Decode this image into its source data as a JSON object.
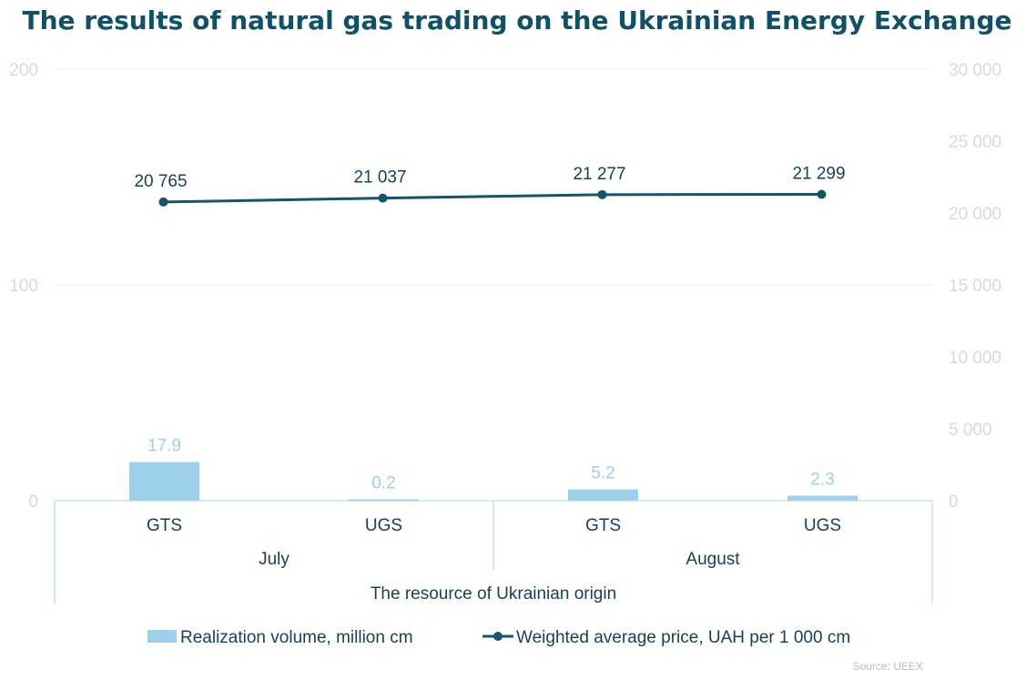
{
  "chart_data": {
    "type": "bar",
    "title": "The results of natural gas trading on the Ukrainian Energy Exchange",
    "categories": [
      "GTS",
      "UGS",
      "GTS",
      "UGS"
    ],
    "groups": [
      {
        "label": "July",
        "span": 2
      },
      {
        "label": "August",
        "span": 2
      }
    ],
    "supergroup": "The resource of Ukrainian origin",
    "series": [
      {
        "name": "Realization volume, million cm",
        "type": "bar",
        "axis": "left",
        "color": "#9dd0ea",
        "values": [
          17.9,
          0.2,
          5.2,
          2.3
        ],
        "labels": [
          "17.9",
          "0.2",
          "5.2",
          "2.3"
        ]
      },
      {
        "name": "Weighted average price, UAH per 1 000 cm",
        "type": "line",
        "axis": "right",
        "color": "#15546b",
        "values": [
          20765,
          21037,
          21277,
          21299
        ],
        "labels": [
          "20 765",
          "21 037",
          "21 277",
          "21 299"
        ]
      }
    ],
    "y_left": {
      "ylim": [
        0,
        200
      ],
      "ticks": [
        0,
        100,
        200
      ],
      "tick_labels": [
        "0",
        "100",
        "200"
      ]
    },
    "y_right": {
      "ylim": [
        0,
        30000
      ],
      "ticks": [
        0,
        5000,
        10000,
        15000,
        20000,
        25000,
        30000
      ],
      "tick_labels": [
        "0",
        "5 000",
        "10 000",
        "15 000",
        "20 000",
        "25 000",
        "30 000"
      ]
    },
    "grid": true,
    "legend_position": "bottom",
    "source": "Source: UEEX"
  }
}
